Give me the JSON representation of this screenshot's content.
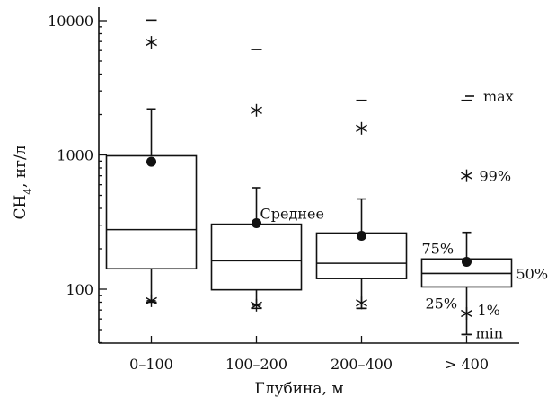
{
  "chart_data": {
    "type": "box",
    "y_scale": "log",
    "ylim": [
      40,
      12000
    ],
    "y_ticks": [
      100,
      1000,
      10000
    ],
    "y_tick_labels": [
      "100",
      "1000",
      "10000"
    ],
    "ylabel_main": "CH",
    "ylabel_sub": "4",
    "ylabel_rest": ", нг/л",
    "xlabel": "Глубина, м",
    "grid": false,
    "categories": [
      "0–100",
      "100–200",
      "200–400",
      "> 400"
    ],
    "boxes": [
      {
        "category": "0–100",
        "min": 80,
        "p1": 82,
        "p25": 142,
        "p50": 278,
        "p75": 985,
        "p99": 6900,
        "max": 10100,
        "whisker_low": 82,
        "whisker_high": 2200,
        "mean": 890
      },
      {
        "category": "100–200",
        "min": 72,
        "p1": 76,
        "p25": 99,
        "p50": 163,
        "p75": 305,
        "p99": 2150,
        "max": 6100,
        "whisker_low": 76,
        "whisker_high": 570,
        "mean": 310
      },
      {
        "category": "200–400",
        "min": 72,
        "p1": 79,
        "p25": 120,
        "p50": 156,
        "p75": 262,
        "p99": 1580,
        "max": 2550,
        "whisker_low": 72,
        "whisker_high": 470,
        "mean": 250
      },
      {
        "category": "> 400",
        "min": 46,
        "p1": 66,
        "p25": 104,
        "p50": 131,
        "p75": 168,
        "p99": 700,
        "max": 2550,
        "whisker_low": 46,
        "whisker_high": 265,
        "mean": 160
      }
    ],
    "annotations": {
      "mean": "Среднее",
      "max": "max",
      "p99": "99%",
      "p75": "75%",
      "p50": "50%",
      "p25": "25%",
      "p1": "1%",
      "min": "min"
    }
  }
}
